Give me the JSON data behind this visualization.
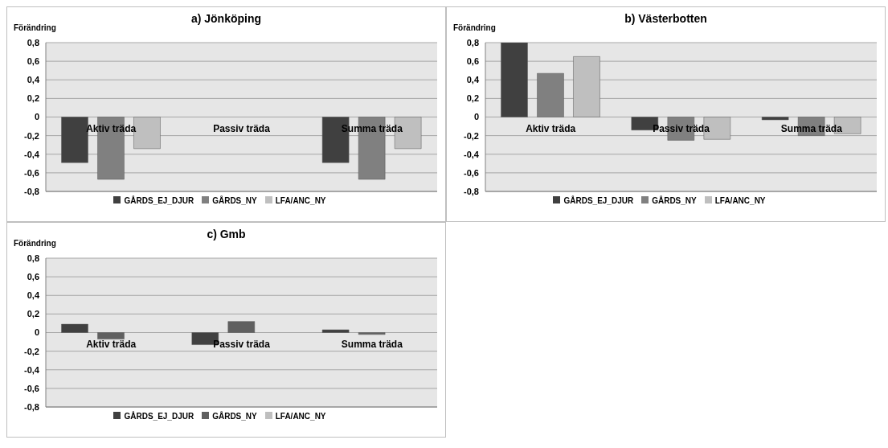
{
  "chart_data": [
    {
      "type": "bar",
      "title": "a) Jönköping",
      "ylabel": "Förändring",
      "categories": [
        "Aktiv träda",
        "Passiv träda",
        "Summa träda"
      ],
      "series": [
        {
          "name": "GÅRDS_EJ_DJUR",
          "color": "#404040",
          "values": [
            -0.49,
            0,
            -0.49
          ]
        },
        {
          "name": "GÅRDS_NY",
          "color": "#808080",
          "values": [
            -0.67,
            0,
            -0.67
          ]
        },
        {
          "name": "LFA/ANC_NY",
          "color": "#bfbfbf",
          "values": [
            -0.34,
            0,
            -0.34
          ]
        }
      ],
      "ylim": [
        -0.8,
        0.8
      ],
      "yticks": [
        {
          "value": -0.8,
          "label": "-0,8"
        },
        {
          "value": -0.6,
          "label": "-0,6"
        },
        {
          "value": -0.4,
          "label": "-0,4"
        },
        {
          "value": -0.2,
          "label": "-0,2"
        },
        {
          "value": 0,
          "label": "0"
        },
        {
          "value": 0.2,
          "label": "0,2"
        },
        {
          "value": 0.4,
          "label": "0,4"
        },
        {
          "value": 0.6,
          "label": "0,6"
        },
        {
          "value": 0.8,
          "label": "0,8"
        }
      ],
      "grid": "y",
      "legend": "bottom"
    },
    {
      "type": "bar",
      "title": "b) Västerbotten",
      "ylabel": "Förändring",
      "categories": [
        "Aktiv träda",
        "Passiv träda",
        "Summa träda"
      ],
      "series": [
        {
          "name": "GÅRDS_EJ_DJUR",
          "color": "#404040",
          "values": [
            0.8,
            -0.14,
            -0.03
          ]
        },
        {
          "name": "GÅRDS_NY",
          "color": "#808080",
          "values": [
            0.47,
            -0.25,
            -0.2
          ]
        },
        {
          "name": "LFA/ANC_NY",
          "color": "#bfbfbf",
          "values": [
            0.65,
            -0.24,
            -0.18
          ]
        }
      ],
      "ylim": [
        -0.8,
        0.8
      ],
      "yticks": [
        {
          "value": -0.8,
          "label": "-0,8"
        },
        {
          "value": -0.6,
          "label": "-0,6"
        },
        {
          "value": -0.4,
          "label": "-0,4"
        },
        {
          "value": -0.2,
          "label": "-0,2"
        },
        {
          "value": 0,
          "label": "0"
        },
        {
          "value": 0.2,
          "label": "0,2"
        },
        {
          "value": 0.4,
          "label": "0,4"
        },
        {
          "value": 0.6,
          "label": "0,6"
        },
        {
          "value": 0.8,
          "label": "0,8"
        }
      ],
      "grid": "y",
      "legend": "bottom"
    },
    {
      "type": "bar",
      "title": "c) Gmb",
      "ylabel": "Förändring",
      "categories": [
        "Aktiv träda",
        "Passiv träda",
        "Summa träda"
      ],
      "series": [
        {
          "name": "GÅRDS_EJ_DJUR",
          "color": "#404040",
          "values": [
            0.09,
            -0.13,
            0.03
          ]
        },
        {
          "name": "GÅRDS_NY",
          "color": "#606060",
          "values": [
            -0.07,
            0.12,
            -0.02
          ]
        },
        {
          "name": "LFA/ANC_NY",
          "color": "#bfbfbf",
          "values": [
            0,
            0,
            0
          ]
        }
      ],
      "ylim": [
        -0.8,
        0.8
      ],
      "yticks": [
        {
          "value": -0.8,
          "label": "-0,8"
        },
        {
          "value": -0.6,
          "label": "-0,6"
        },
        {
          "value": -0.4,
          "label": "-0,4"
        },
        {
          "value": -0.2,
          "label": "-0,2"
        },
        {
          "value": 0,
          "label": "0"
        },
        {
          "value": 0.2,
          "label": "0,2"
        },
        {
          "value": 0.4,
          "label": "0,4"
        },
        {
          "value": 0.6,
          "label": "0,6"
        },
        {
          "value": 0.8,
          "label": "0,8"
        }
      ],
      "grid": "y",
      "legend": "bottom"
    }
  ]
}
